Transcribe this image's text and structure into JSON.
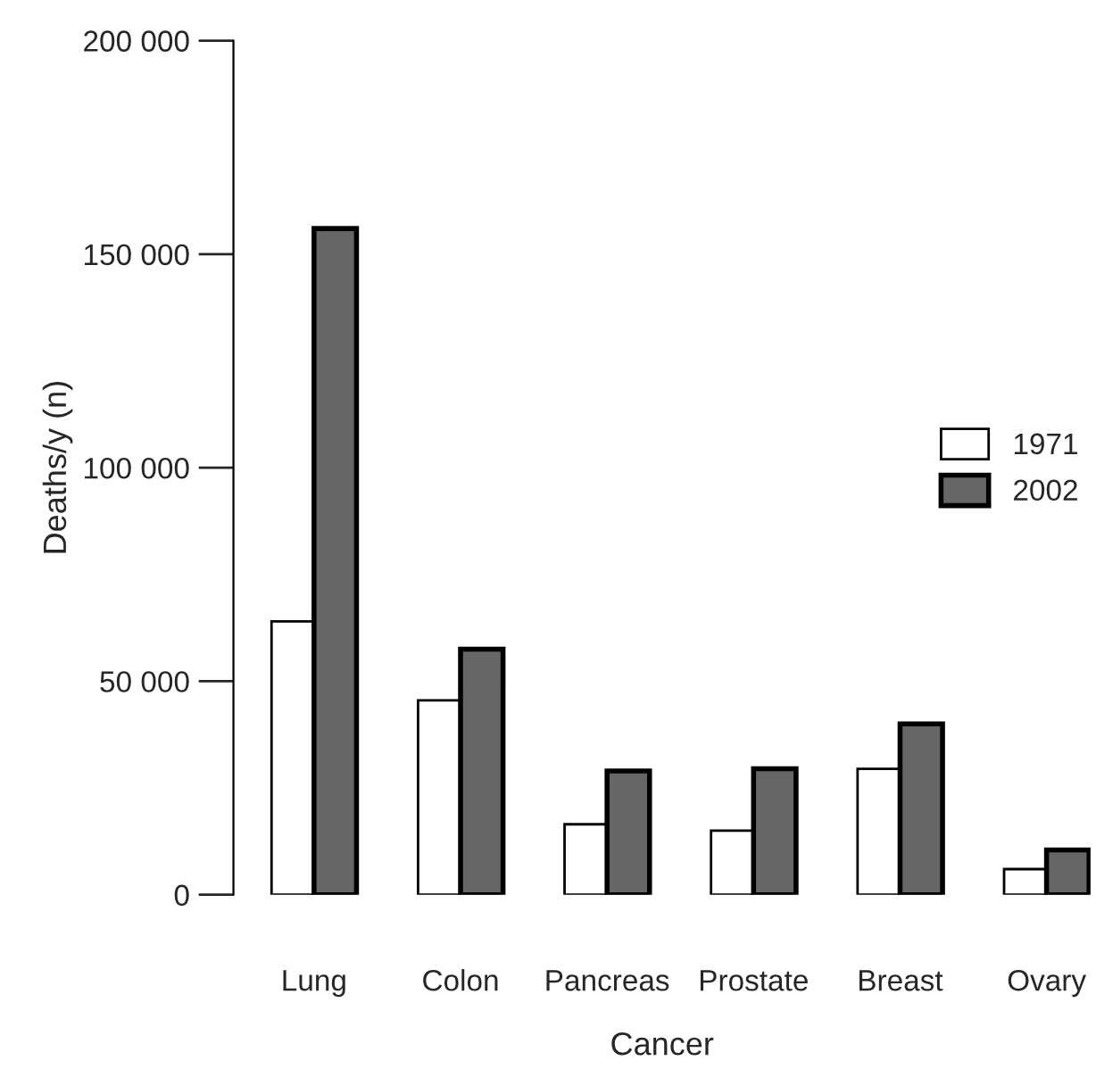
{
  "chart_data": {
    "type": "bar",
    "xlabel": "Cancer",
    "ylabel": "Deaths/y (n)",
    "categories": [
      "Lung",
      "Colon",
      "Pancreas",
      "Prostate",
      "Breast",
      "Ovary"
    ],
    "series": [
      {
        "name": "1971",
        "color": "#ffffff",
        "values": [
          64000,
          45500,
          16500,
          15000,
          29500,
          6000
        ]
      },
      {
        "name": "2002",
        "color": "#666666",
        "values": [
          156000,
          57500,
          29000,
          29500,
          40000,
          10500
        ]
      }
    ],
    "ylim": [
      0,
      200000
    ],
    "yticks": [
      {
        "value": 0,
        "label": "0"
      },
      {
        "value": 50000,
        "label": "50 000"
      },
      {
        "value": 100000,
        "label": "100 000"
      },
      {
        "value": 150000,
        "label": "150 000"
      },
      {
        "value": 200000,
        "label": "200 000"
      }
    ],
    "grid": false,
    "legend": "right"
  }
}
